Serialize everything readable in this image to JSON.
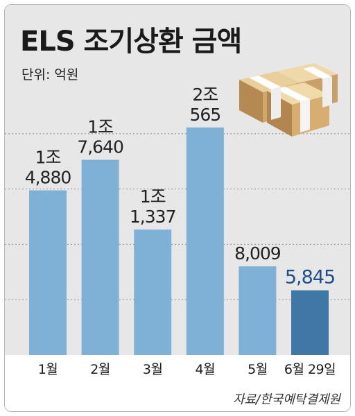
{
  "chart_data": {
    "type": "bar",
    "title": "ELS 조기상환 금액",
    "unit_label": "단위: 억원",
    "source": "자료/한국예탁결제원",
    "categories": [
      "1월",
      "2월",
      "3월",
      "4월",
      "5월",
      "6월 29일"
    ],
    "values": [
      14880,
      17640,
      11337,
      20565,
      8009,
      5845
    ],
    "value_labels": [
      [
        "1조",
        "4,880"
      ],
      [
        "1조",
        "7,640"
      ],
      [
        "1조",
        "1,337"
      ],
      [
        "2조",
        "565"
      ],
      [
        "8,009"
      ],
      [
        "5,845"
      ]
    ],
    "ylim": [
      0,
      24000
    ],
    "grid": true,
    "colors": {
      "bar": "#7fb0d6",
      "highlight_bar": "#3f78a6",
      "highlight_label": "#1f4e8c",
      "label": "#222222",
      "grid": "#8a8a8a",
      "plot_bg": "#e7e7e8"
    },
    "highlight_index": 5
  },
  "decoration": {
    "icon": "money-bundles-icon"
  }
}
